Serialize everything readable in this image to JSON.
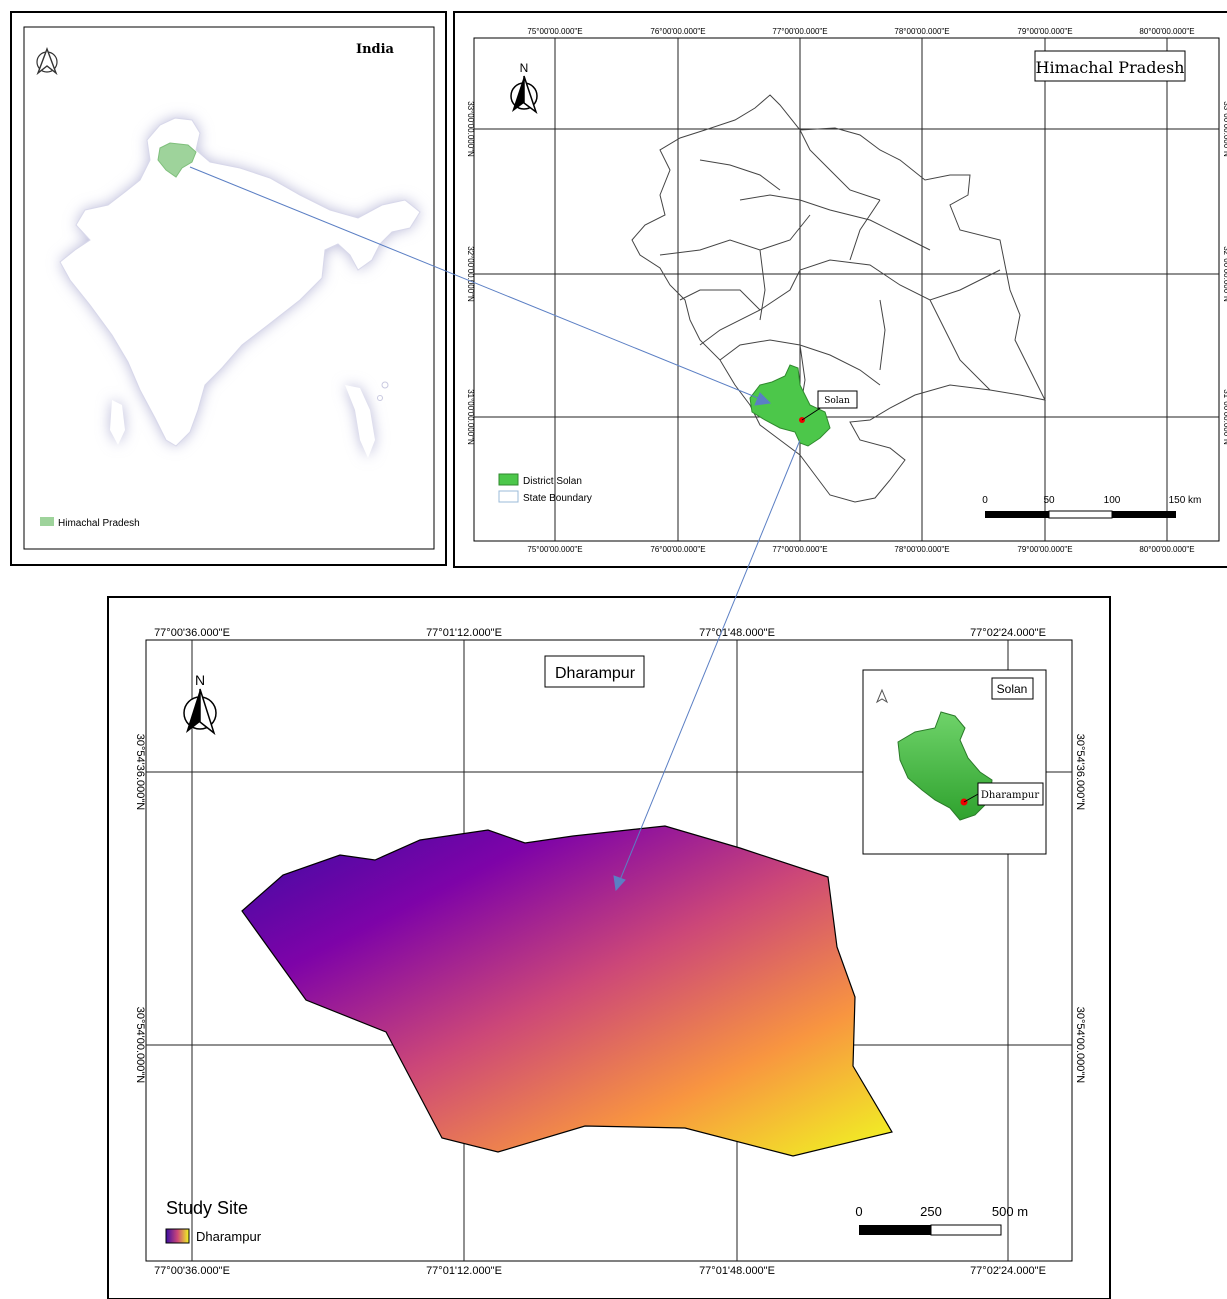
{
  "india_panel": {
    "title": "India",
    "legend_label": "Himachal Pradesh",
    "colors": {
      "hp_fill": "#9ed39b",
      "shadow": "#c9c9e0",
      "country_fill": "#ffffff"
    }
  },
  "hp_panel": {
    "title": "Himachal Pradesh",
    "north_label": "N",
    "lon_ticks": [
      "75°00'00.000\"E",
      "76°00'00.000\"E",
      "77°00'00.000\"E",
      "78°00'00.000\"E",
      "79°00'00.000\"E",
      "80°00'00.000\"E"
    ],
    "lat_ticks": [
      "33°00'00.000\"N",
      "32°00'00.000\"N",
      "31°00'00.000\"N"
    ],
    "district_label": "Solan",
    "legend": [
      {
        "label": "District Solan",
        "color": "#4cc74a"
      },
      {
        "label": "State Boundary",
        "color": "#ffffff"
      }
    ],
    "scale": {
      "ticks": [
        "0",
        "50",
        "100",
        "150 km"
      ]
    }
  },
  "dharampur_panel": {
    "title": "Dharampur",
    "north_label": "N",
    "lon_ticks": [
      "77°00'36.000\"E",
      "77°01'12.000\"E",
      "77°01'48.000\"E",
      "77°02'24.000\"E"
    ],
    "lat_ticks": [
      "30°54'36.000\"N",
      "30°54'00.000\"N"
    ],
    "inset_title": "Solan",
    "inset_label": "Dharampur",
    "legend_title": "Study Site",
    "legend_label": "Dharampur",
    "scale": {
      "ticks": [
        "0",
        "250",
        "500 m"
      ]
    },
    "gradient": [
      "#3a0ca3",
      "#7e03a8",
      "#cc4778",
      "#f89540",
      "#f0f921"
    ]
  }
}
